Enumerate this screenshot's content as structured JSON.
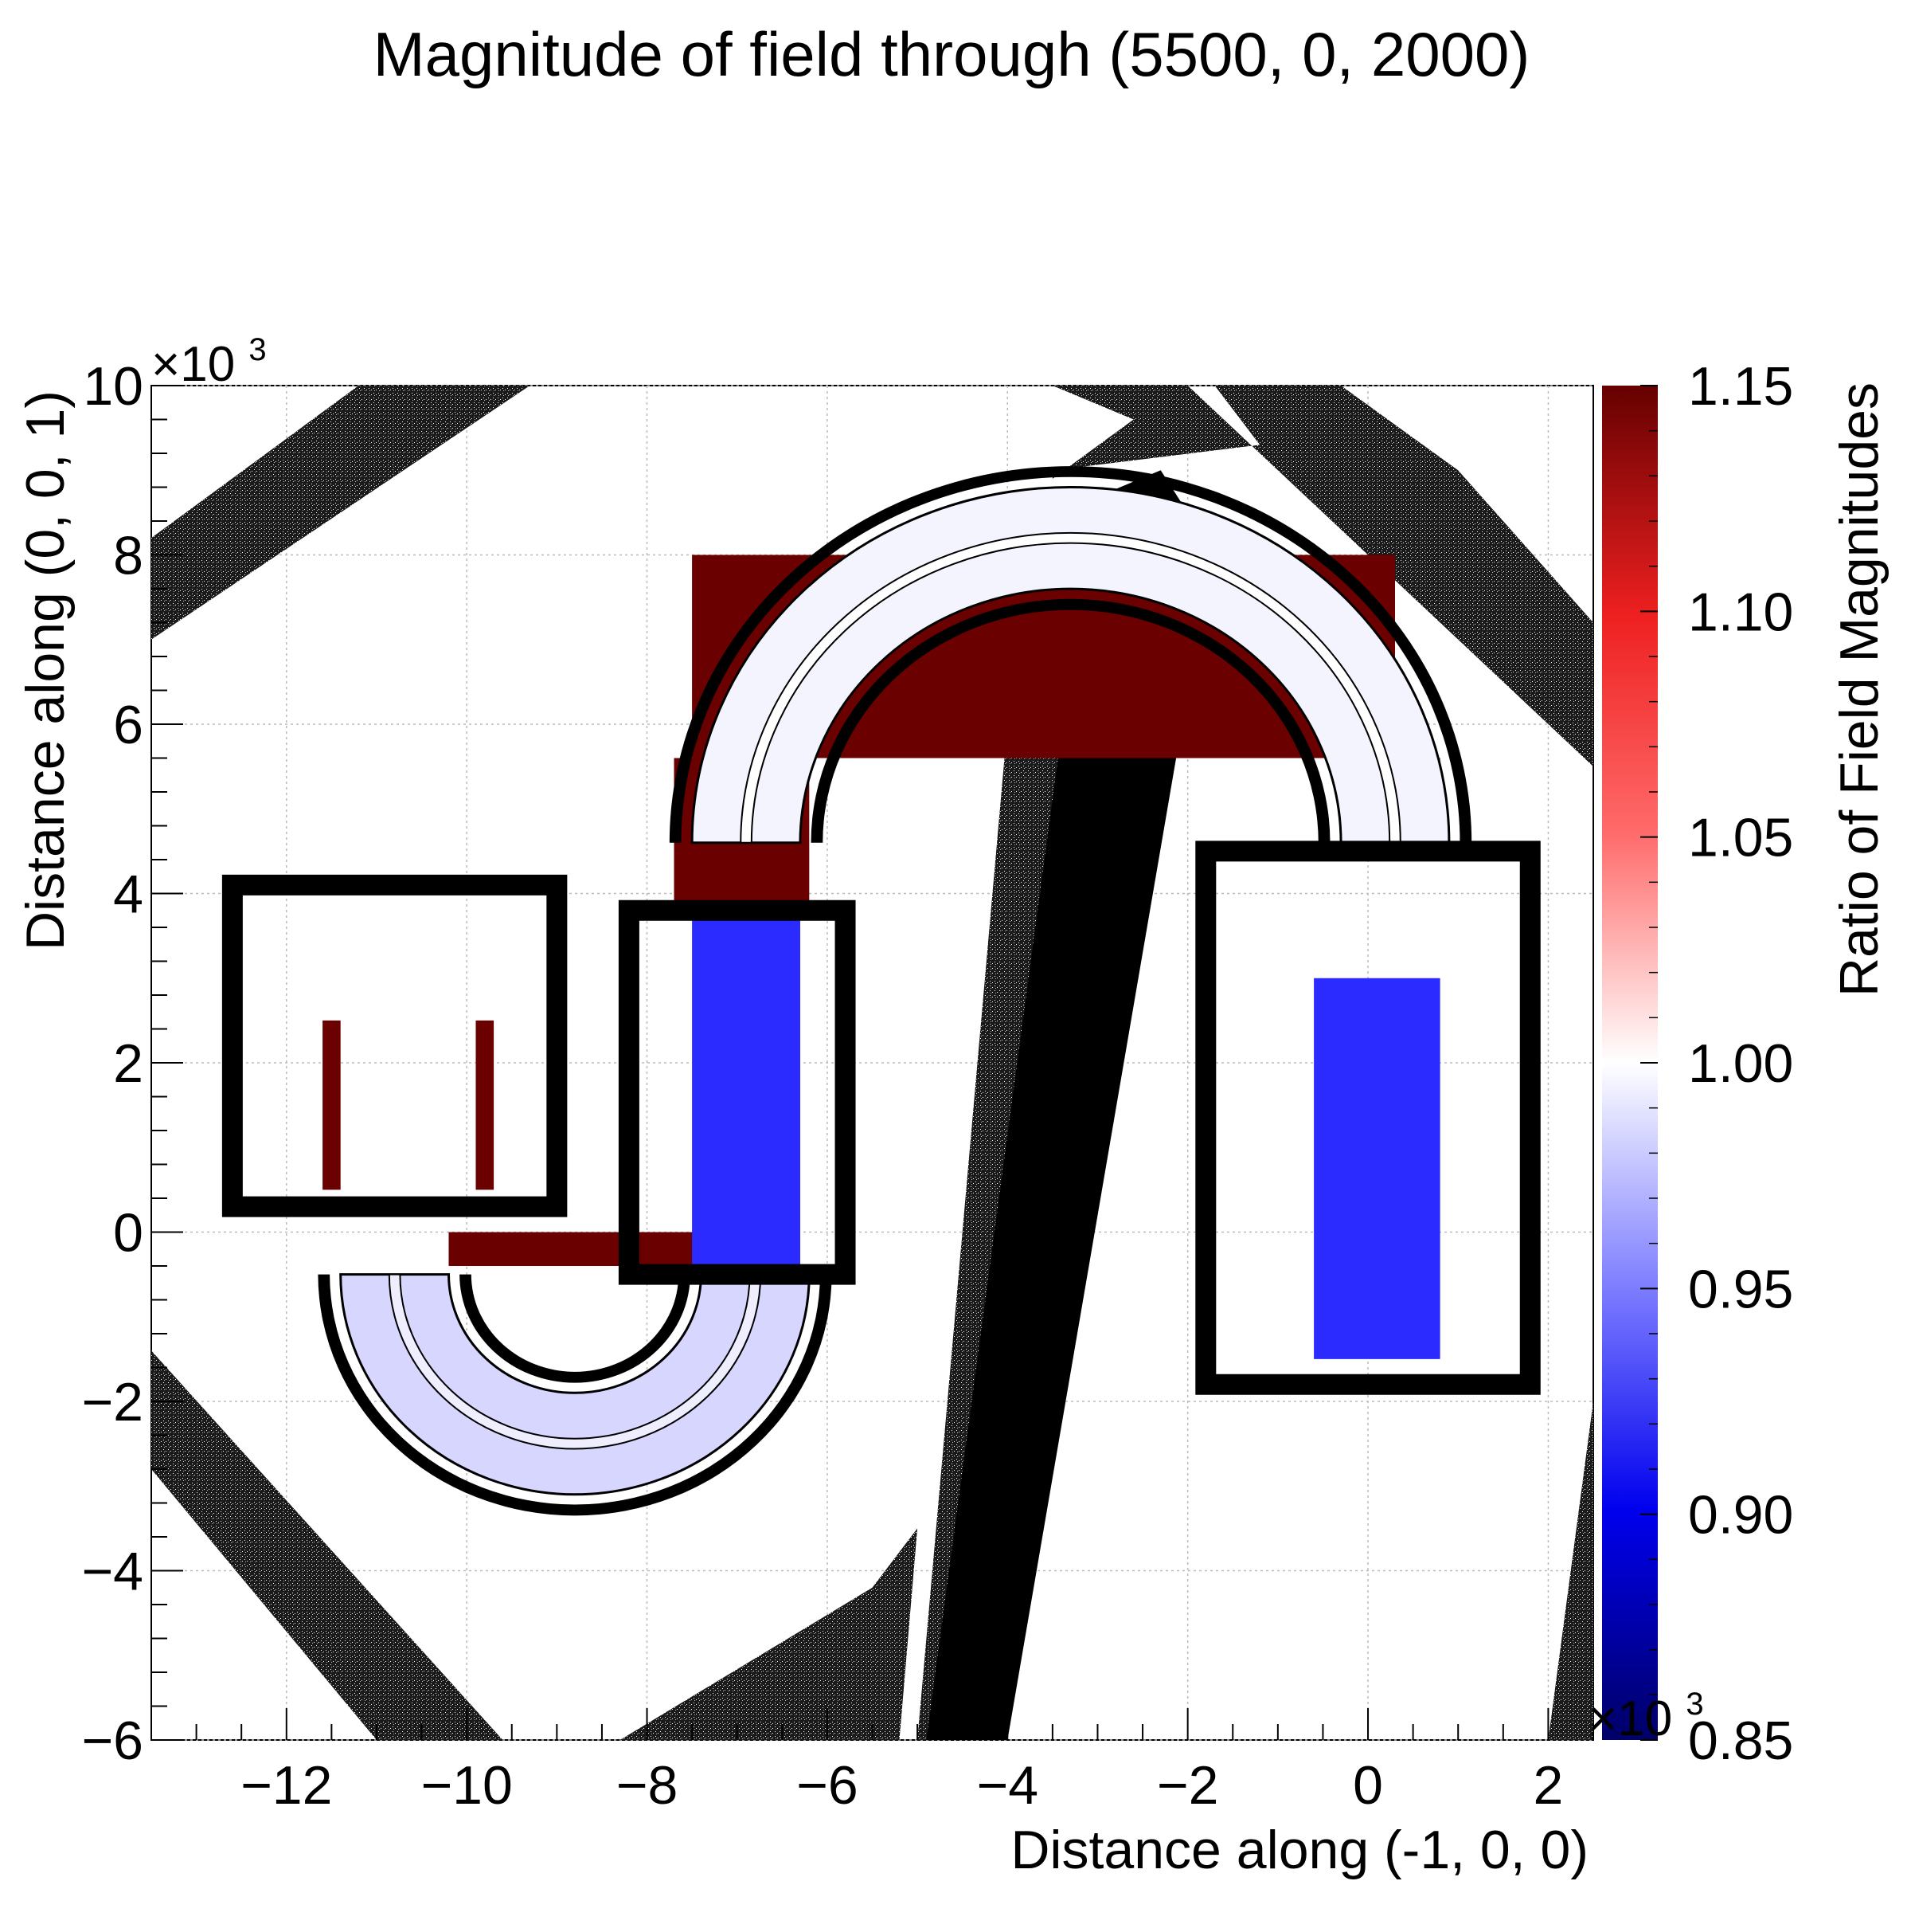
{
  "chart_data": {
    "type": "heatmap",
    "title": "Magnitude of field through (5500, 0, 2000)",
    "xlabel": "Distance along (-1, 0, 0)",
    "ylabel": "Distance along (0, 0, 1)",
    "x_exponent_label": "×10",
    "x_exponent_power": "3",
    "y_exponent_label": "×10",
    "y_exponent_power": "3",
    "xlim": [
      -13500,
      2500
    ],
    "ylim": [
      -6000,
      10000
    ],
    "x_ticks": [
      {
        "value": -12000,
        "label": "−12"
      },
      {
        "value": -10000,
        "label": "−10"
      },
      {
        "value": -8000,
        "label": "−8"
      },
      {
        "value": -6000,
        "label": "−6"
      },
      {
        "value": -4000,
        "label": "−4"
      },
      {
        "value": -2000,
        "label": "−2"
      },
      {
        "value": 0,
        "label": "0"
      },
      {
        "value": 2000,
        "label": "2"
      }
    ],
    "y_ticks": [
      {
        "value": -6000,
        "label": "−6"
      },
      {
        "value": -4000,
        "label": "−4"
      },
      {
        "value": -2000,
        "label": "−2"
      },
      {
        "value": 0,
        "label": "0"
      },
      {
        "value": 2000,
        "label": "2"
      },
      {
        "value": 4000,
        "label": "4"
      },
      {
        "value": 6000,
        "label": "6"
      },
      {
        "value": 8000,
        "label": "8"
      },
      {
        "value": 10000,
        "label": "10"
      }
    ],
    "grid": true,
    "colorbar": {
      "label": "Ratio of Field Magnitudes",
      "range": [
        0.85,
        1.15
      ],
      "ticks": [
        {
          "value": 0.85,
          "label": "0.85"
        },
        {
          "value": 0.9,
          "label": "0.90"
        },
        {
          "value": 0.95,
          "label": "0.95"
        },
        {
          "value": 1.0,
          "label": "1.00"
        },
        {
          "value": 1.05,
          "label": "1.05"
        },
        {
          "value": 1.1,
          "label": "1.10"
        },
        {
          "value": 1.15,
          "label": "1.15"
        }
      ],
      "colors": [
        "#000066",
        "#0000ee",
        "#7a7aff",
        "#ffffff",
        "#ff6a6a",
        "#ee2020",
        "#660000"
      ]
    },
    "colors": {
      "high": "#6b0000",
      "low": "#2b2bff",
      "structure": "#000000",
      "noise": "#555555"
    },
    "regions": [
      {
        "name": "iron-band-upper-left",
        "kind": "noise",
        "pts": [
          [
            -13500,
            7000
          ],
          [
            -13500,
            8200
          ],
          [
            -11200,
            10000
          ],
          [
            -9300,
            10000
          ]
        ]
      },
      {
        "name": "iron-band-lower-left",
        "kind": "noise",
        "pts": [
          [
            -13500,
            -1400
          ],
          [
            -13500,
            -2800
          ],
          [
            -11000,
            -6000
          ],
          [
            -9600,
            -6000
          ]
        ]
      },
      {
        "name": "iron-band-lower-mid",
        "kind": "noise",
        "pts": [
          [
            -8300,
            -6000
          ],
          [
            -5500,
            -4200
          ],
          [
            -5000,
            -3500
          ],
          [
            -5200,
            -6000
          ]
        ]
      },
      {
        "name": "iron-band-upper-right",
        "kind": "noise",
        "pts": [
          [
            -3500,
            10000
          ],
          [
            -2000,
            10000
          ],
          [
            2500,
            5500
          ],
          [
            2500,
            7200
          ],
          [
            1000,
            9000
          ],
          [
            -300,
            10000
          ],
          [
            -1700,
            10000
          ],
          [
            -1200,
            9300
          ],
          [
            -3500,
            9000
          ],
          [
            -3500,
            8900
          ],
          [
            -2600,
            9600
          ]
        ]
      },
      {
        "name": "iron-band-right-edge",
        "kind": "noise",
        "pts": [
          [
            2500,
            -2000
          ],
          [
            2500,
            -6000
          ],
          [
            2000,
            -6000
          ]
        ]
      },
      {
        "name": "iron-band-diagonal",
        "kind": "noise",
        "pts": [
          [
            -5000,
            -6000
          ],
          [
            -3900,
            7200
          ],
          [
            -3200,
            7200
          ],
          [
            -4000,
            -6000
          ]
        ]
      },
      {
        "name": "iron-column-solid",
        "kind": "structure",
        "pts": [
          [
            -4000,
            -6000
          ],
          [
            -2000,
            6400
          ],
          [
            -2900,
            6700
          ],
          [
            -3300,
            6700
          ],
          [
            -4900,
            -6000
          ]
        ]
      },
      {
        "name": "iron-top-wedge",
        "kind": "structure",
        "pts": [
          [
            -2300,
            9000
          ],
          [
            -1700,
            8000
          ],
          [
            -2500,
            8400
          ],
          [
            -3200,
            8600
          ]
        ]
      },
      {
        "name": "red-block-top",
        "kind": "high",
        "pts": [
          [
            -7500,
            8000
          ],
          [
            300,
            8000
          ],
          [
            300,
            5600
          ],
          [
            -7500,
            5600
          ]
        ]
      },
      {
        "name": "red-block-right-leg",
        "kind": "high",
        "pts": [
          [
            -100,
            5600
          ],
          [
            800,
            5600
          ],
          [
            800,
            4500
          ],
          [
            -100,
            4500
          ]
        ]
      },
      {
        "name": "red-block-left-leg",
        "kind": "high",
        "pts": [
          [
            -7700,
            5600
          ],
          [
            -6200,
            5600
          ],
          [
            -6200,
            3700
          ],
          [
            -7700,
            3700
          ]
        ]
      },
      {
        "name": "red-bar-bottom",
        "kind": "high",
        "pts": [
          [
            -10200,
            0
          ],
          [
            -7400,
            0
          ],
          [
            -7400,
            -400
          ],
          [
            -10200,
            -400
          ]
        ]
      },
      {
        "name": "red-strip-left-a",
        "kind": "high",
        "pts": [
          [
            -11600,
            2500
          ],
          [
            -11400,
            2500
          ],
          [
            -11400,
            500
          ],
          [
            -11600,
            500
          ]
        ]
      },
      {
        "name": "red-strip-left-b",
        "kind": "high",
        "pts": [
          [
            -9900,
            2500
          ],
          [
            -9700,
            2500
          ],
          [
            -9700,
            500
          ],
          [
            -9900,
            500
          ]
        ]
      },
      {
        "name": "blue-vertical-column",
        "kind": "low",
        "pts": [
          [
            -7500,
            3700
          ],
          [
            -6300,
            3700
          ],
          [
            -6300,
            -400
          ],
          [
            -7500,
            -400
          ]
        ]
      },
      {
        "name": "blue-right-magnet",
        "kind": "low",
        "pts": [
          [
            -600,
            3000
          ],
          [
            800,
            3000
          ],
          [
            800,
            -1500
          ],
          [
            -600,
            -1500
          ]
        ]
      }
    ],
    "bends": [
      {
        "name": "top-arch",
        "cx": -3300,
        "cy": 4600,
        "r_outer": 4200,
        "r_inner": 3000,
        "from_deg": 0,
        "to_deg": 180
      },
      {
        "name": "bottom-u",
        "cx": -8800,
        "cy": -500,
        "r_outer": 2600,
        "r_inner": 1400,
        "from_deg": 180,
        "to_deg": 360
      }
    ],
    "frames": [
      {
        "name": "left-yoke-frame",
        "x0": -12600,
        "y0": 300,
        "x1": -9000,
        "y1": 4100
      },
      {
        "name": "mid-yoke-frame",
        "x0": -8200,
        "y0": -500,
        "x1": -5800,
        "y1": 3800
      },
      {
        "name": "right-yoke-frame",
        "x0": -1800,
        "y0": -1800,
        "x1": 1800,
        "y1": 4500
      }
    ]
  }
}
